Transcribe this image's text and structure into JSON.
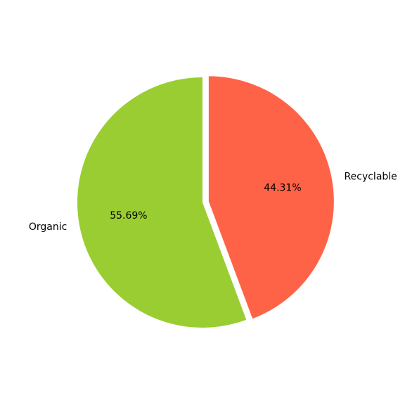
{
  "chart_data": {
    "type": "pie",
    "slices": [
      {
        "label": "Recyclable",
        "value": 44.31,
        "percent_label": "44.31%",
        "color": "#ff6347",
        "exploded": true
      },
      {
        "label": "Organic",
        "value": 55.69,
        "percent_label": "55.69%",
        "color": "#9acd32",
        "exploded": false
      }
    ],
    "start_angle_deg": 90,
    "direction": "clockwise",
    "title": "",
    "legend": "none"
  }
}
